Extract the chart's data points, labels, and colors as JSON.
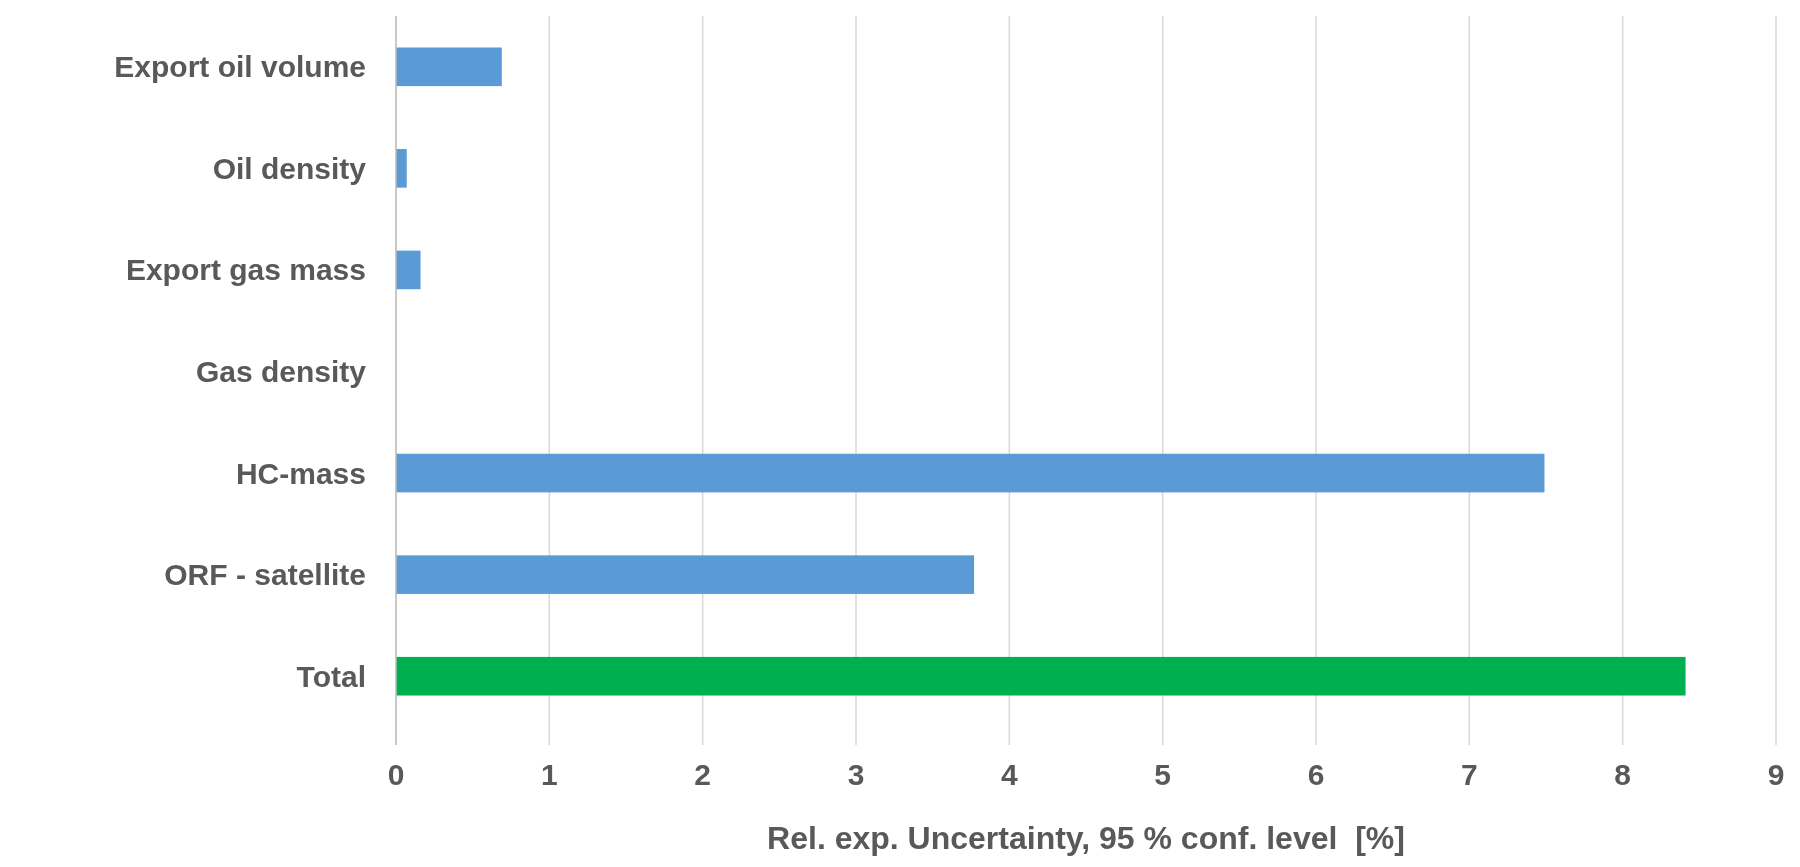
{
  "chart_data": {
    "type": "bar",
    "orientation": "horizontal",
    "categories": [
      "Export oil volume",
      "Oil density",
      "Export gas mass",
      "Gas density",
      "HC-mass",
      "ORF - satellite",
      "Total"
    ],
    "values": [
      0.69,
      0.07,
      0.16,
      0,
      7.49,
      3.77,
      8.41
    ],
    "colors": [
      "#5b9bd5",
      "#5b9bd5",
      "#5b9bd5",
      "#5b9bd5",
      "#5b9bd5",
      "#5b9bd5",
      "#00b050"
    ],
    "xlim": [
      0,
      9
    ],
    "xticks": [
      0,
      1,
      2,
      3,
      4,
      5,
      6,
      7,
      8,
      9
    ],
    "grid": "x",
    "xlabel": "Rel. exp. Uncertainty, 95 % conf. level  [%]"
  }
}
